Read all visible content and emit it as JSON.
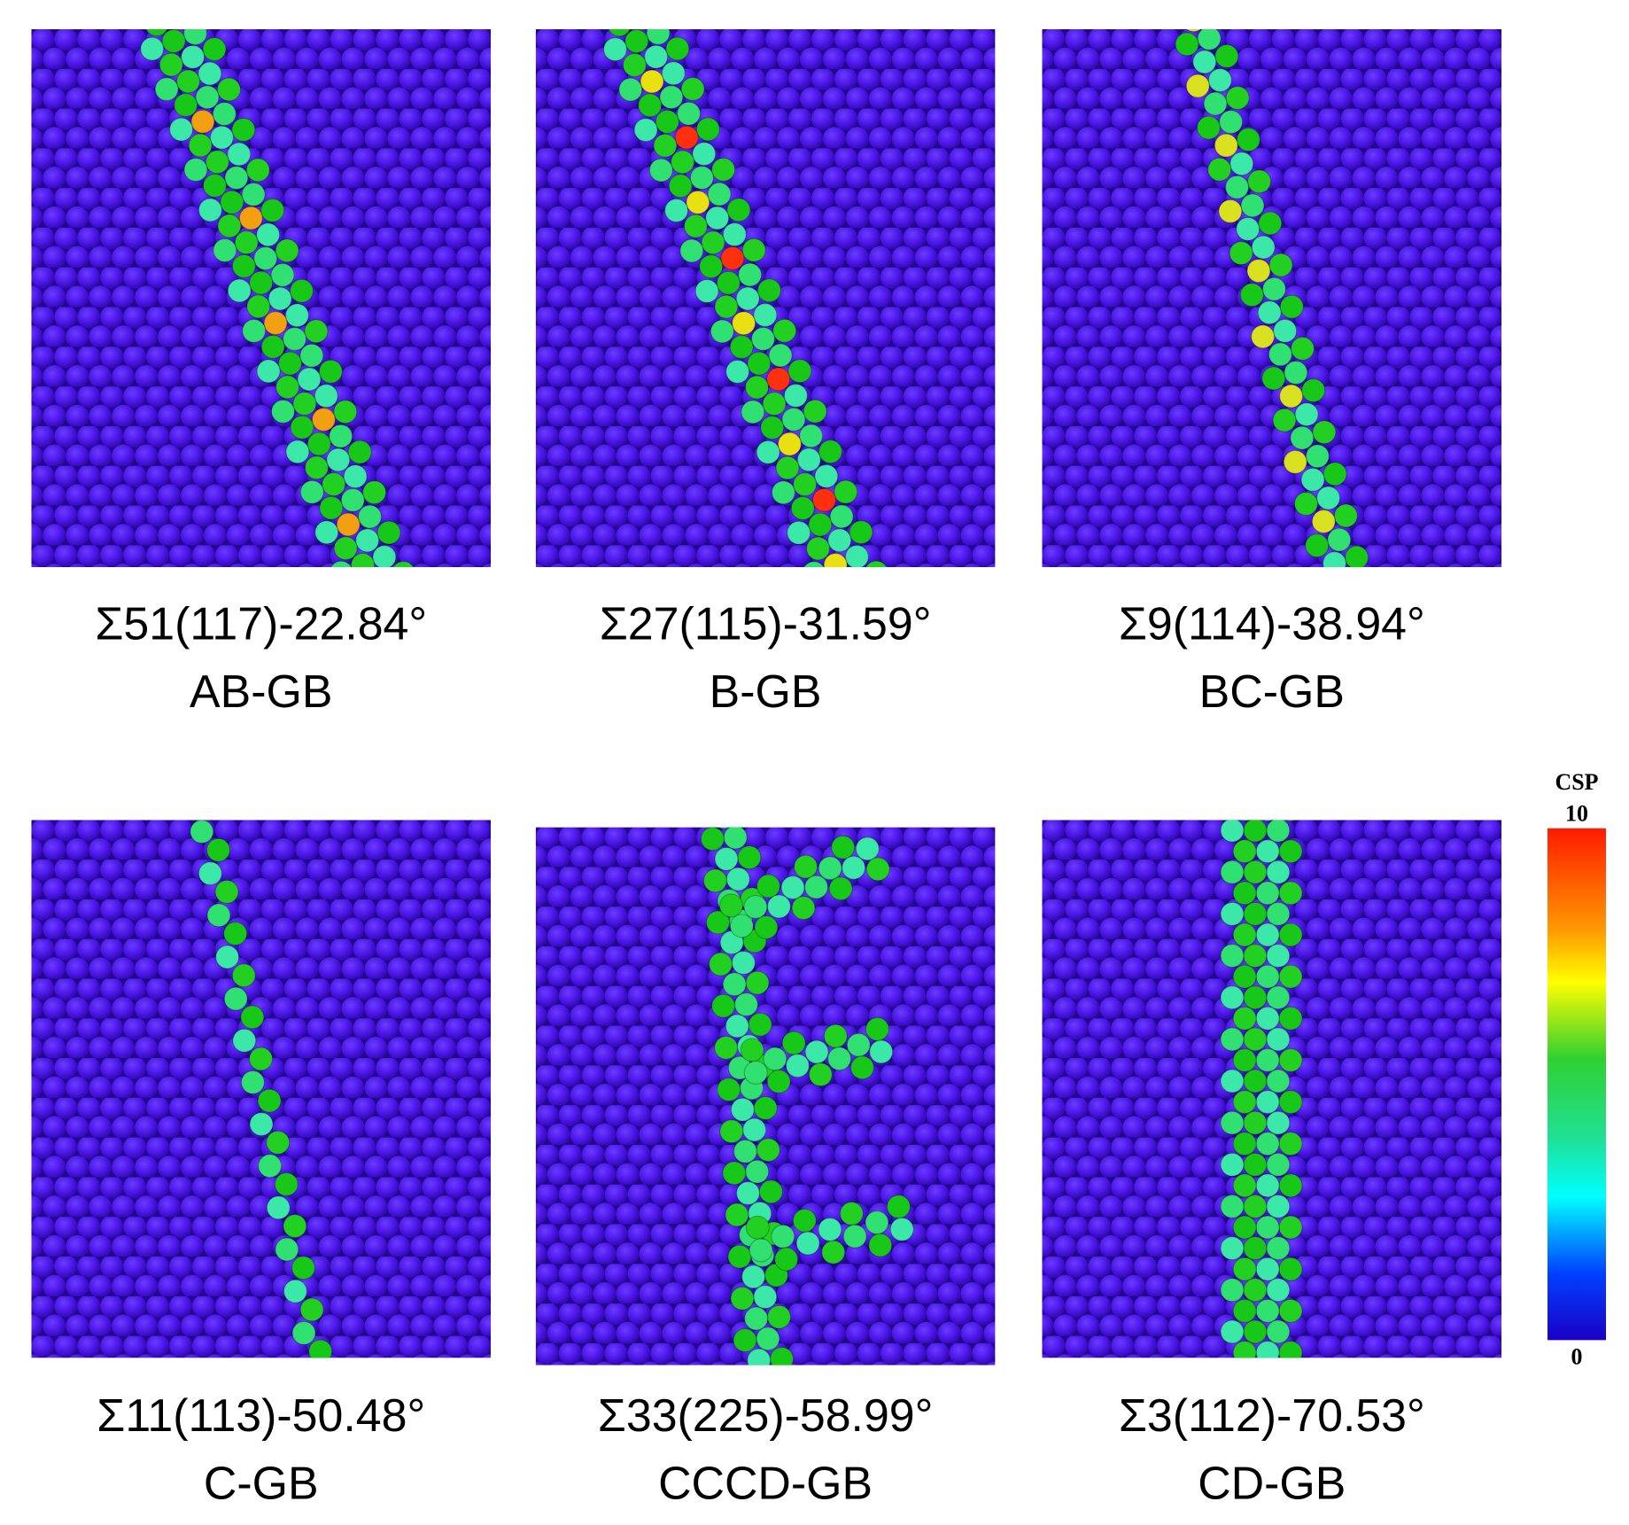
{
  "panels": [
    {
      "title": "Σ51(117)-22.84°",
      "subtitle": "AB-GB"
    },
    {
      "title": "Σ27(115)-31.59°",
      "subtitle": "B-GB"
    },
    {
      "title": "Σ9(114)-38.94°",
      "subtitle": "BC-GB"
    },
    {
      "title": "Σ11(113)-50.48°",
      "subtitle": "C-GB"
    },
    {
      "title": "Σ33(225)-58.99°",
      "subtitle": "CCCD-GB"
    },
    {
      "title": "Σ3(112)-70.53°",
      "subtitle": "CD-GB"
    }
  ],
  "colorbar": {
    "label": "CSP",
    "max": "10",
    "min": "0"
  }
}
